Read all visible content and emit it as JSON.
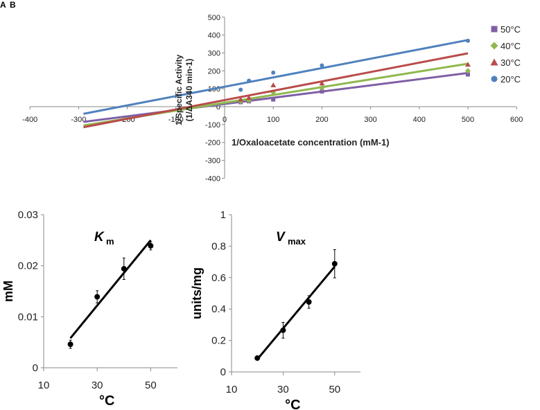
{
  "panels": [
    "A",
    "B"
  ],
  "chart_data": [
    {
      "type": "scatter",
      "title": "",
      "xlabel": "1/Oxaloacetate concentration (mM-1)",
      "ylabel_line1": "1/Specific Activity",
      "ylabel_line2": "(1/ΔA340 min-1)",
      "xlim": [
        -400,
        600
      ],
      "ylim": [
        -400,
        500
      ],
      "xticks": [
        -400,
        -300,
        -200,
        -100,
        0,
        100,
        200,
        300,
        400,
        500,
        600
      ],
      "yticks": [
        -400,
        -300,
        -200,
        -100,
        0,
        100,
        200,
        300,
        400,
        500
      ],
      "legend_position": "top-right",
      "x": [
        33,
        50,
        100,
        200,
        500
      ],
      "series": [
        {
          "name": "50°C",
          "marker": "square",
          "color": "#7f5fa6",
          "values": [
            25,
            30,
            40,
            85,
            180
          ],
          "fit": [
            [
              -290,
              -85
            ],
            [
              500,
              188
            ]
          ]
        },
        {
          "name": "40°C",
          "marker": "diamond",
          "color": "#8fb84e",
          "values": [
            30,
            35,
            80,
            105,
            200
          ],
          "fit": [
            [
              -290,
              -105
            ],
            [
              500,
              240
            ]
          ]
        },
        {
          "name": "30°C",
          "marker": "triangle",
          "color": "#b84c4a",
          "values": [
            40,
            50,
            120,
            130,
            235
          ],
          "fit": [
            [
              -290,
              -115
            ],
            [
              500,
              298
            ]
          ]
        },
        {
          "name": "20°C",
          "marker": "circle",
          "color": "#4f81bd",
          "values": [
            95,
            145,
            190,
            230,
            368
          ],
          "fit": [
            [
              -290,
              -40
            ],
            [
              500,
              372
            ]
          ]
        }
      ]
    },
    {
      "type": "scatter",
      "title": "K",
      "title_sub": "m",
      "xlabel": "°C",
      "ylabel": "mM",
      "xlim": [
        10,
        60
      ],
      "ylim": [
        0,
        0.03
      ],
      "xticks": [
        10,
        30,
        50
      ],
      "yticks": [
        "0",
        "0.01",
        "0.02",
        "0.03"
      ],
      "x": [
        20,
        30,
        40,
        50
      ],
      "values": [
        0.0046,
        0.0139,
        0.0194,
        0.0239
      ],
      "errors": [
        0.0008,
        0.0012,
        0.0021,
        0.0008
      ],
      "fit": [
        [
          20,
          0.0058
        ],
        [
          50,
          0.025
        ]
      ]
    },
    {
      "type": "scatter",
      "title": "V",
      "title_sub": "max",
      "xlabel": "°C",
      "ylabel": "units/mg",
      "xlim": [
        10,
        60
      ],
      "ylim": [
        0,
        1
      ],
      "xticks": [
        10,
        30,
        50
      ],
      "yticks": [
        "0",
        "0.2",
        "0.4",
        "0.6",
        "0.8",
        "1"
      ],
      "x": [
        20,
        30,
        40,
        50
      ],
      "values": [
        0.088,
        0.265,
        0.445,
        0.688
      ],
      "errors": [
        0.005,
        0.05,
        0.04,
        0.09
      ],
      "fit": [
        [
          20,
          0.08
        ],
        [
          50,
          0.67
        ]
      ]
    }
  ]
}
